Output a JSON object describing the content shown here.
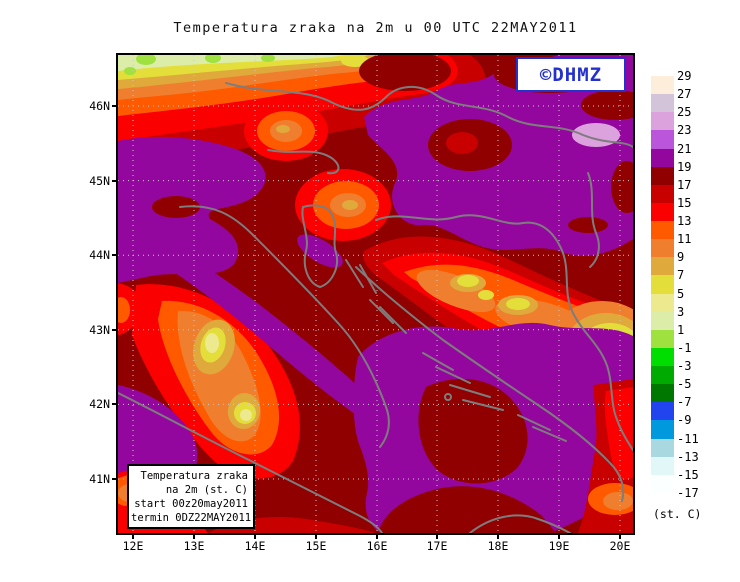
{
  "title": "Temperatura zraka na 2m u 00 UTC 22MAY2011",
  "watermark": {
    "text": "©DHMZ"
  },
  "info_box": {
    "lines": [
      "Temperatura zraka",
      "na 2m (st. C)",
      "start 00z20may2011",
      "termin 0DZ22MAY2011"
    ]
  },
  "axes": {
    "y_labels": [
      "46N",
      "45N",
      "44N",
      "43N",
      "42N",
      "41N"
    ],
    "x_labels": [
      "12E",
      "13E",
      "14E",
      "15E",
      "16E",
      "17E",
      "18E",
      "19E",
      "20E"
    ]
  },
  "colorbar": {
    "unit": "(st. C)",
    "tick_labels": [
      "29",
      "27",
      "25",
      "23",
      "21",
      "19",
      "17",
      "15",
      "13",
      "11",
      "9",
      "7",
      "5",
      "3",
      "1",
      "-1",
      "-3",
      "-5",
      "-7",
      "-9",
      "-11",
      "-13",
      "-15",
      "-17"
    ],
    "box_colors": [
      "#fdeedc",
      "#d3c4da",
      "#dca2de",
      "#bb55da",
      "#94079e",
      "#900000",
      "#c80000",
      "#fa0000",
      "#ff5a00",
      "#ef7f2f",
      "#dfa93c",
      "#e4de3a",
      "#ede98f",
      "#dcedaa",
      "#9fe13f",
      "#00dd00",
      "#00aa00",
      "#007700",
      "#2244ee",
      "#0099dd",
      "#aad8e0",
      "#e2f8f8",
      "#fbffff"
    ]
  },
  "colors": {
    "frame": "#000000",
    "coastline": "#7d7d7d",
    "grid": "#c9c9c9",
    "logo_blue": "#2531cf",
    "base_field": "#900000"
  }
}
